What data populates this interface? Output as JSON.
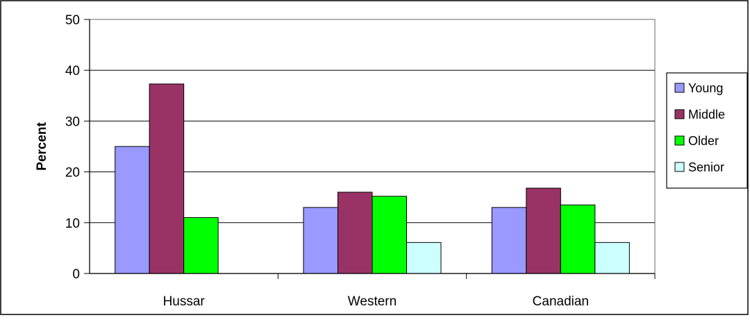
{
  "chart_data": {
    "type": "bar",
    "title": "",
    "xlabel": "",
    "ylabel": "Percent",
    "ylim": [
      0,
      50
    ],
    "yticks": [
      0,
      10,
      20,
      30,
      40,
      50
    ],
    "grid": true,
    "legend_position": "right",
    "categories": [
      "Hussar",
      "Western",
      "Canadian"
    ],
    "series": [
      {
        "name": "Young",
        "color": "#9999ff",
        "values": [
          25,
          13,
          13
        ]
      },
      {
        "name": "Middle",
        "color": "#993366",
        "values": [
          37.3,
          16,
          16.8
        ]
      },
      {
        "name": "Older",
        "color": "#00ff00",
        "values": [
          11,
          15.2,
          13.5
        ]
      },
      {
        "name": "Senior",
        "color": "#ccffff",
        "values": [
          null,
          6.1,
          6.1
        ]
      }
    ]
  }
}
